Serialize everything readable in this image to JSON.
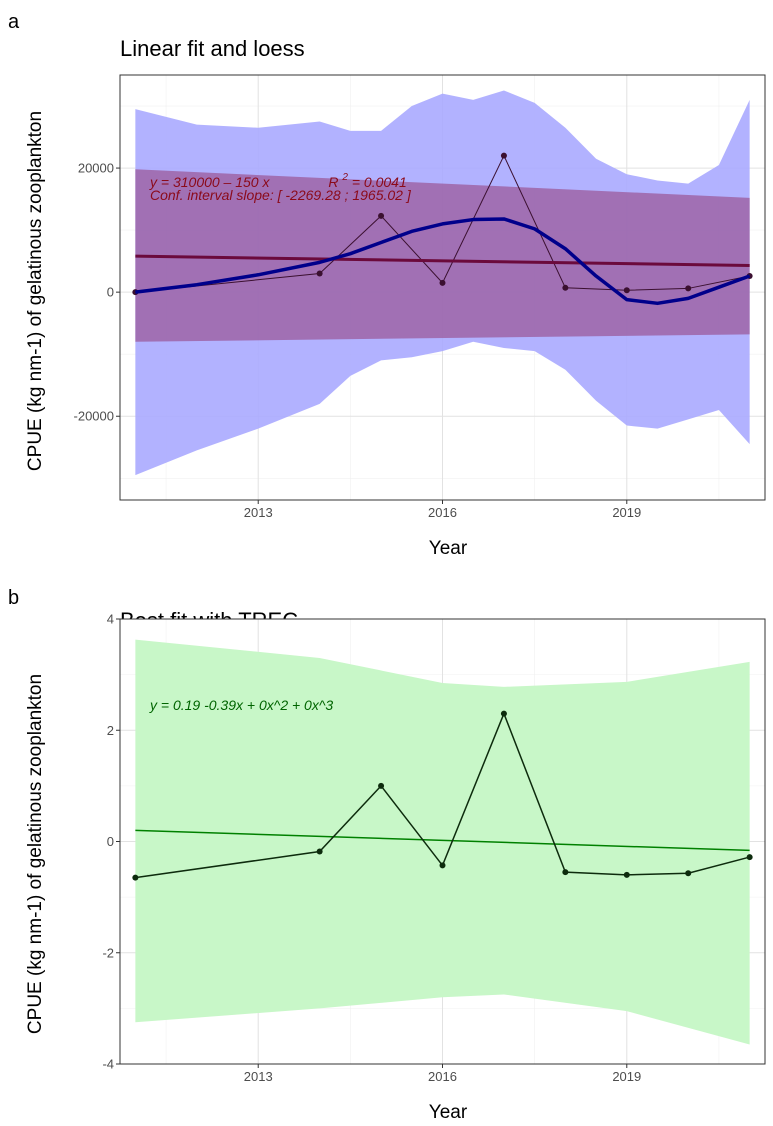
{
  "chart_data": [
    {
      "panel_label": "a",
      "type": "line",
      "title": "Linear fit and loess",
      "xlabel": "Year",
      "ylabel": "CPUE (kg nm-1) of gelatinous zooplankton",
      "xlim": [
        2010.75,
        2021.25
      ],
      "ylim": [
        -33500,
        35000
      ],
      "x_ticks": [
        2013,
        2016,
        2019
      ],
      "x_tick_labels": [
        "2013",
        "2016",
        "2019"
      ],
      "y_ticks": [
        -20000,
        0,
        20000
      ],
      "y_tick_labels": [
        "-20000",
        "0",
        "20000"
      ],
      "grid": true,
      "colors": {
        "observed": "#3b1030",
        "loess": "#00008b",
        "loess_band": "#aaaaff",
        "linear": "#6b0a3c",
        "linear_band": "#9b5a9b",
        "annotation": "#8b0a1a"
      },
      "annotation_line1": {
        "prefix": "y = 310000 – 150 x",
        "r2_label": "R",
        "r2_sup": "2",
        "r2_value": " = 0.0041"
      },
      "annotation_line2": "Conf. interval slope:  [ -2269.28 ; 1965.02 ]",
      "observed": {
        "x": [
          2011,
          2014,
          2015,
          2016,
          2017,
          2018,
          2019,
          2020,
          2021
        ],
        "y": [
          0,
          3000,
          12300,
          1500,
          22000,
          700,
          300,
          600,
          2600
        ]
      },
      "linear_fit": {
        "x": [
          2011,
          2021
        ],
        "y": [
          5800,
          4300
        ]
      },
      "linear_ci": {
        "x": [
          2011,
          2021
        ],
        "lower": [
          -8000,
          -6800
        ],
        "upper": [
          19800,
          15200
        ]
      },
      "loess": {
        "x": [
          2011,
          2012,
          2013,
          2014,
          2014.5,
          2015,
          2015.5,
          2016,
          2016.5,
          2017,
          2017.5,
          2018,
          2018.5,
          2019,
          2019.5,
          2020,
          2020.5,
          2021
        ],
        "y": [
          0,
          1200,
          2800,
          4800,
          6200,
          8000,
          9800,
          11000,
          11700,
          11800,
          10200,
          7000,
          2600,
          -1200,
          -1800,
          -1000,
          800,
          2600
        ],
        "lower": [
          -29500,
          -25500,
          -22000,
          -18000,
          -13500,
          -11000,
          -10500,
          -9500,
          -8000,
          -9000,
          -9500,
          -12500,
          -17500,
          -21500,
          -22000,
          -20500,
          -19000,
          -24500
        ],
        "upper": [
          29500,
          27000,
          26500,
          27500,
          26000,
          26000,
          30000,
          32000,
          31000,
          32500,
          30500,
          26500,
          21500,
          19000,
          18000,
          17500,
          20500,
          31000
        ]
      }
    },
    {
      "panel_label": "b",
      "type": "line",
      "title": "Best fit with TREC",
      "xlabel": "Year",
      "ylabel": "CPUE (kg nm-1) of gelatinous zooplankton",
      "xlim": [
        2010.75,
        2021.25
      ],
      "ylim": [
        -4,
        4
      ],
      "x_ticks": [
        2013,
        2016,
        2019
      ],
      "x_tick_labels": [
        "2013",
        "2016",
        "2019"
      ],
      "y_ticks": [
        -4,
        -2,
        0,
        2,
        4
      ],
      "y_tick_labels": [
        "-4",
        "-2",
        "0",
        "2",
        "4"
      ],
      "grid": true,
      "colors": {
        "observed": "#0d2b0d",
        "fit": "#008000",
        "band": "#c8f7c8",
        "annotation": "#006400"
      },
      "annotation": "y =  0.19   -0.39x  + 0x^2  + 0x^3",
      "observed": {
        "x": [
          2011,
          2014,
          2015,
          2016,
          2017,
          2018,
          2019,
          2020,
          2021
        ],
        "y": [
          -0.65,
          -0.18,
          1.0,
          -0.43,
          2.3,
          -0.55,
          -0.6,
          -0.57,
          -0.28
        ]
      },
      "fit": {
        "x": [
          2011,
          2021
        ],
        "y": [
          0.2,
          -0.16
        ]
      },
      "band": {
        "x": [
          2011,
          2014,
          2016,
          2017,
          2019,
          2021
        ],
        "lower": [
          -3.25,
          -3.0,
          -2.8,
          -2.75,
          -3.05,
          -3.65
        ],
        "upper": [
          3.63,
          3.3,
          2.85,
          2.78,
          2.87,
          3.23
        ]
      }
    }
  ]
}
